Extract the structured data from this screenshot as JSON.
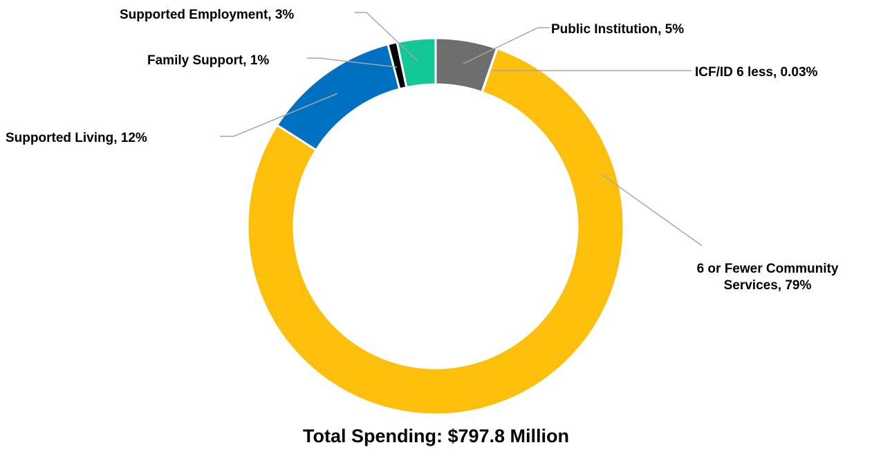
{
  "chart_data": {
    "type": "pie",
    "donut": true,
    "slices": [
      {
        "label": "Public Institution",
        "percent_label": "5%",
        "value": 5.3,
        "color": "#6e6e6e"
      },
      {
        "label": "ICF/ID 6 less",
        "percent_label": "0.03%",
        "value": 0.03,
        "color": "#6e6e6e"
      },
      {
        "label": "6 or Fewer Community Services",
        "percent_label": "79%",
        "value": 78.9,
        "color": "#fcbf0c"
      },
      {
        "label": "Supported Living",
        "percent_label": "12%",
        "value": 11.9,
        "color": "#0070c0"
      },
      {
        "label": "Family Support",
        "percent_label": "1%",
        "value": 0.8,
        "color": "#000000"
      },
      {
        "label": "Supported Employment",
        "percent_label": "3%",
        "value": 3.3,
        "color": "#13c797"
      }
    ],
    "data_labels": [
      "Public Institution, 5%",
      "ICF/ID 6 less, 0.03%",
      "6 or Fewer Community",
      "Services, 79%",
      "Supported Living, 12%",
      "Family Support, 1%",
      "Supported Employment, 3%"
    ]
  },
  "caption": "Total Spending: $797.8 Million"
}
